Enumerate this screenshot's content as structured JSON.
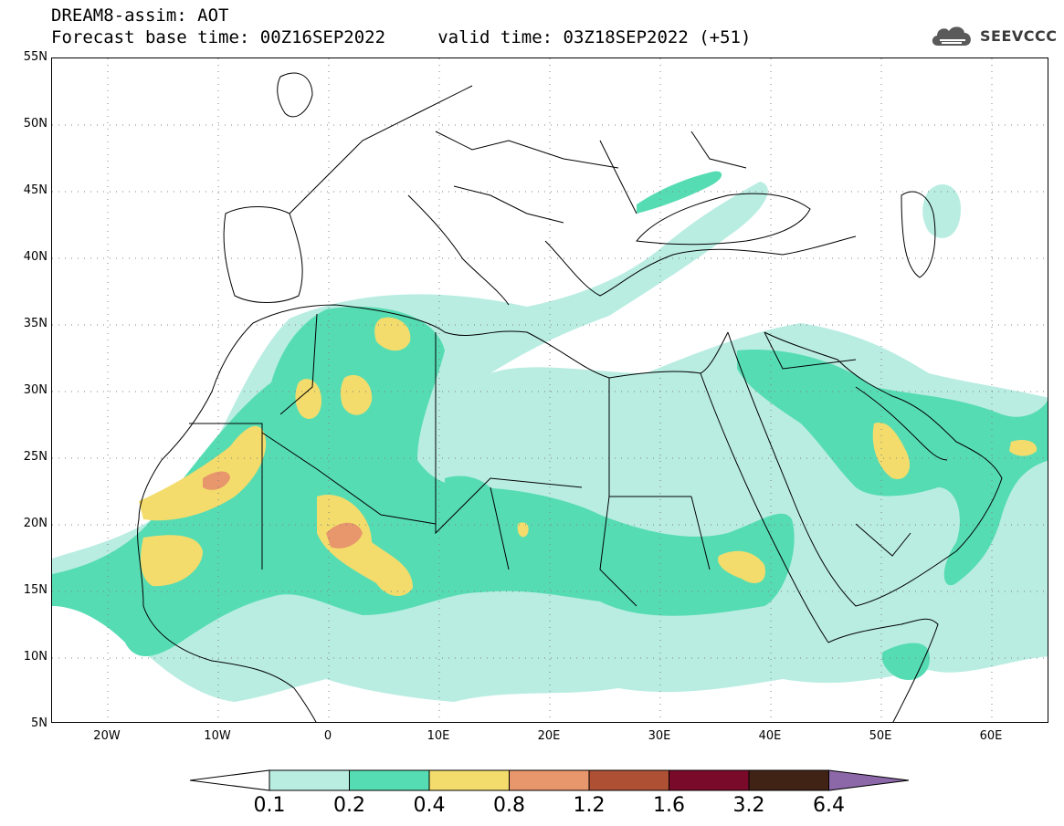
{
  "header": {
    "title_line1": "DREAM8-assim: AOT",
    "title_line2": "Forecast base time: 00Z16SEP2022     valid time: 03Z18SEP2022 (+51)"
  },
  "logo": {
    "icon": "cloud-icon",
    "text": "SEEVCCC"
  },
  "map": {
    "lat_labels": [
      "55N",
      "50N",
      "45N",
      "40N",
      "35N",
      "30N",
      "25N",
      "20N",
      "15N",
      "10N",
      "5N"
    ],
    "lon_labels": [
      "20W",
      "10W",
      "0",
      "10E",
      "20E",
      "30E",
      "40E",
      "50E",
      "60E"
    ],
    "grid": "dotted"
  },
  "colorbar": {
    "colors": [
      "#ffffff",
      "#b9ede2",
      "#56dcb3",
      "#f3dc6c",
      "#e8966b",
      "#ae5034",
      "#7a0a2a",
      "#412316",
      "#8c68a8"
    ],
    "labels": [
      "0.1",
      "0.2",
      "0.4",
      "0.8",
      "1.2",
      "1.6",
      "3.2",
      "6.4"
    ]
  }
}
